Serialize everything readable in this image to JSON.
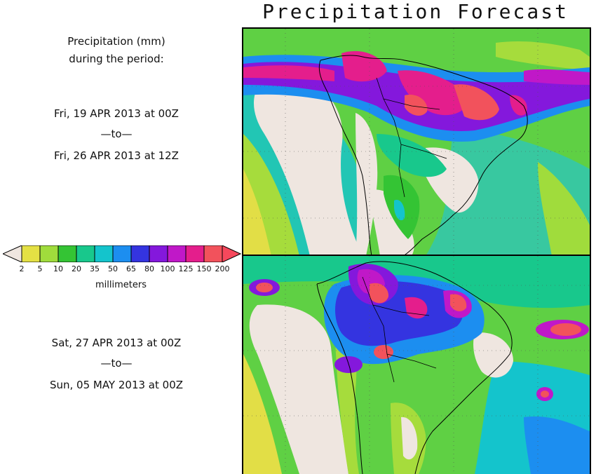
{
  "title": "Precipitation Forecast",
  "caption": {
    "line1": "Precipitation (mm)",
    "line2": "during the period:"
  },
  "period1": {
    "start": "Fri, 19 APR 2013 at 00Z",
    "sep": "—to—",
    "end": "Fri, 26 APR 2013 at 12Z"
  },
  "period2": {
    "start": "Sat, 27 APR 2013 at 00Z",
    "sep": "—to—",
    "end": "Sun, 05 MAY 2013 at 00Z"
  },
  "legend": {
    "units": "millimeters",
    "labels": [
      "2",
      "5",
      "10",
      "20",
      "35",
      "50",
      "65",
      "80",
      "100",
      "125",
      "150",
      "200"
    ],
    "under_color": "#efe6e0",
    "over_color": "#f6485c",
    "colors": [
      "#e4e044",
      "#a0dc3c",
      "#34c434",
      "#18c88c",
      "#14c4cc",
      "#1c8ef0",
      "#3434e0",
      "#8418dc",
      "#c018c8",
      "#e41e8c",
      "#f2525c"
    ]
  }
}
